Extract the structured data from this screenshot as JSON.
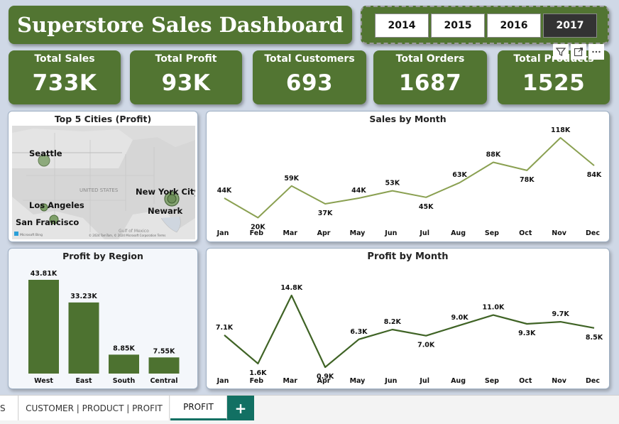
{
  "dashboard": {
    "title": "Superstore Sales Dashboard"
  },
  "year_slicer": {
    "years": [
      "2014",
      "2015",
      "2016",
      "2017"
    ],
    "selected": "2017"
  },
  "kpis": [
    {
      "label": "Total Sales",
      "value": "733K"
    },
    {
      "label": "Total Profit",
      "value": "93K"
    },
    {
      "label": "Total Customers",
      "value": "693"
    },
    {
      "label": "Total Orders",
      "value": "1687"
    },
    {
      "label": "Total Products",
      "value": "1525"
    }
  ],
  "map": {
    "title": "Top 5 Cities (Profit)",
    "cities": [
      "Seattle",
      "New York City",
      "Los Angeles",
      "Newark",
      "San Francisco"
    ],
    "background_labels": [
      "UNITED STATES",
      "Gulf of Mexico"
    ],
    "attribution": "© 2024 TomTom, © 2024 Microsoft Corporation  Terms",
    "brand": "Microsoft Bing"
  },
  "colors": {
    "accent_green": "#527532",
    "line_light": "#8aa051",
    "line_dark": "#3f6325",
    "bar": "#4d7230",
    "canvas": "#cfd8e6",
    "tab_accent": "#127063"
  },
  "tabs": {
    "partial": "S",
    "customer": "CUSTOMER | PRODUCT | PROFIT",
    "profit": "PROFIT",
    "add": "+"
  },
  "chart_data": [
    {
      "type": "line",
      "title": "Sales by Month",
      "categories": [
        "Jan",
        "Feb",
        "Mar",
        "Apr",
        "May",
        "Jun",
        "Jul",
        "Aug",
        "Sep",
        "Oct",
        "Nov",
        "Dec"
      ],
      "values": [
        44,
        20,
        59,
        37,
        44,
        53,
        45,
        63,
        88,
        78,
        118,
        84
      ],
      "labels": [
        "44K",
        "20K",
        "59K",
        "37K",
        "44K",
        "53K",
        "45K",
        "63K",
        "88K",
        "78K",
        "118K",
        "84K"
      ],
      "ylim": [
        10,
        125
      ]
    },
    {
      "type": "bar",
      "title": "Profit by Region",
      "categories": [
        "West",
        "East",
        "South",
        "Central"
      ],
      "values": [
        43.81,
        33.23,
        8.85,
        7.55
      ],
      "labels": [
        "43.81K",
        "33.23K",
        "8.85K",
        "7.55K"
      ],
      "ylim": [
        0,
        43.81
      ]
    },
    {
      "type": "line",
      "title": "Profit by Month",
      "categories": [
        "Jan",
        "Feb",
        "Mar",
        "Apr",
        "May",
        "Jun",
        "Jul",
        "Aug",
        "Sep",
        "Oct",
        "Nov",
        "Dec"
      ],
      "values": [
        7.1,
        1.6,
        14.8,
        0.9,
        6.3,
        8.2,
        7.0,
        9.0,
        11.0,
        9.3,
        9.7,
        8.5
      ],
      "labels": [
        "7.1K",
        "1.6K",
        "14.8K",
        "0.9K",
        "6.3K",
        "8.2K",
        "7.0K",
        "9.0K",
        "11.0K",
        "9.3K",
        "9.7K",
        "8.5K"
      ],
      "ylim": [
        0.9,
        14.8
      ]
    }
  ]
}
